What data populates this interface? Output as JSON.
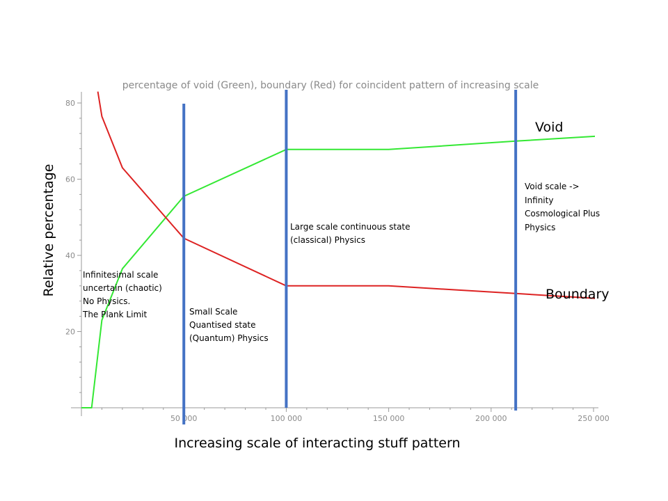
{
  "chart_data": {
    "type": "line",
    "title": "percentage of void (Green), boundary (Red) for coincident pattern of increasing scale",
    "ylabel": "Relative percentage",
    "xlabel": "Increasing scale of interacting stuff pattern",
    "xlim": [
      -5000,
      258000
    ],
    "ylim": [
      -2,
      83
    ],
    "xticks": [
      50000,
      100000,
      150000,
      200000,
      250000
    ],
    "xtick_labels": [
      "50 000",
      "100 000",
      "150 000",
      "200 000",
      "250 000"
    ],
    "yticks": [
      20,
      40,
      60,
      80
    ],
    "ytick_labels": [
      "20",
      "40",
      "60",
      "80"
    ],
    "series": [
      {
        "name": "Void",
        "color": "#33e833",
        "x": [
          0,
          5000,
          10000,
          20000,
          50000,
          100000,
          150000,
          212000,
          258000
        ],
        "y": [
          0,
          0,
          23,
          36.5,
          55.5,
          67.8,
          67.8,
          70,
          71.5
        ]
      },
      {
        "name": "Boundary",
        "color": "#dd2222",
        "x": [
          8000,
          10000,
          20000,
          50000,
          100000,
          150000,
          212000,
          258000
        ],
        "y": [
          83,
          76.5,
          63,
          44.5,
          32,
          32,
          30,
          28.5
        ]
      }
    ],
    "vlines": {
      "color": "#4472c4",
      "x": [
        50000,
        100000,
        212000
      ]
    },
    "annotations": [
      {
        "lines": [
          "Infinitesimal scale",
          "uncertain (chaotic)",
          "No Physics.",
          "The Plank Limit"
        ]
      },
      {
        "lines": [
          "Small Scale",
          "Quantised state",
          "(Quantum)  Physics"
        ]
      },
      {
        "lines": [
          "Large scale continuous state",
          "(classical) Physics"
        ]
      },
      {
        "lines": [
          "Void scale ->",
          "Infinity",
          "Cosmological Plus",
          "Physics"
        ]
      }
    ]
  }
}
